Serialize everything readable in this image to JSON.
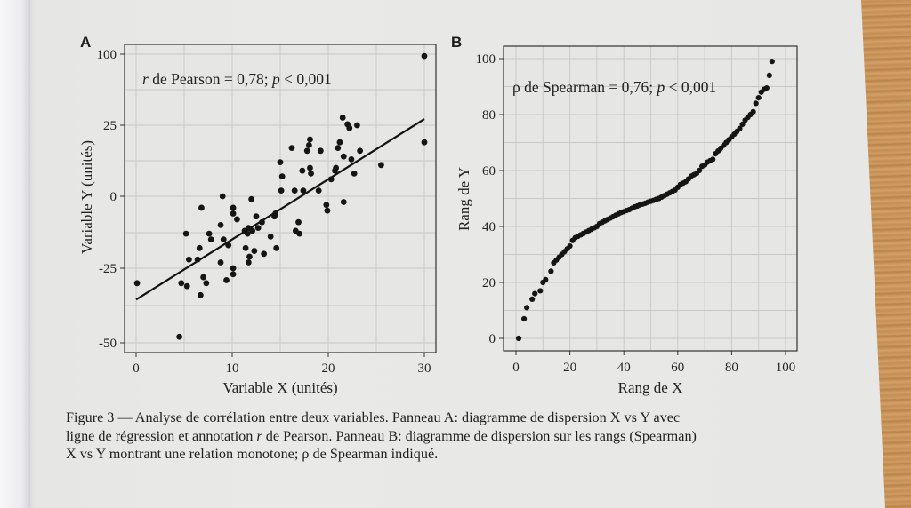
{
  "figure": {
    "caption_parts": {
      "line1": "Figure 3 — Analyse de corrélation entre deux variables. Panneau A: diagramme de dispersion X vs Y avec",
      "line2_pre": "ligne de régression et annotation ",
      "line2_r": "r",
      "line2_post": " de Pearson. Panneau B: diagramme de dispersion sur les rangs (Spearman)",
      "line3": "X vs Y montrant une relation monotone; ρ de Spearman indiqué."
    },
    "panel_a_label": "A",
    "panel_b_label": "B"
  },
  "chart_data": [
    {
      "type": "scatter",
      "panel": "A",
      "title": "",
      "annotation": {
        "r_symbol": "r",
        "text1": " de Pearson = 0,78; ",
        "p_symbol": "p",
        "text2": " < 0,001"
      },
      "xlabel": "Variable X (unités)",
      "ylabel": "Variable Y (unités)",
      "x_ticks": [
        0,
        10,
        20,
        30
      ],
      "y_ticks": [
        100,
        25,
        0,
        -25,
        -50
      ],
      "y_axis_note": "non-linear spacing between tick labels",
      "xlim": [
        -0.8,
        31
      ],
      "ylim": [
        -55,
        105
      ],
      "grid": true,
      "regression_line": {
        "x": [
          0,
          30
        ],
        "y": [
          -35.5,
          31.5
        ]
      },
      "points": [
        [
          0.1,
          -30
        ],
        [
          4.5,
          -48
        ],
        [
          4.7,
          -30
        ],
        [
          5.2,
          -13
        ],
        [
          5.3,
          -31
        ],
        [
          5.5,
          -22
        ],
        [
          6.4,
          -22
        ],
        [
          6.6,
          -18
        ],
        [
          6.8,
          -4
        ],
        [
          6.7,
          -34
        ],
        [
          7.0,
          -28
        ],
        [
          7.3,
          -30
        ],
        [
          7.6,
          -13
        ],
        [
          7.8,
          -15
        ],
        [
          8.8,
          -23
        ],
        [
          8.8,
          -10
        ],
        [
          9.1,
          -15
        ],
        [
          9.0,
          0
        ],
        [
          9.4,
          -29
        ],
        [
          9.6,
          -17
        ],
        [
          10.1,
          -25
        ],
        [
          10.1,
          -27
        ],
        [
          10.1,
          -4
        ],
        [
          10.1,
          -6
        ],
        [
          10.5,
          -8
        ],
        [
          11.3,
          -12
        ],
        [
          11.4,
          -18
        ],
        [
          11.6,
          -13
        ],
        [
          11.7,
          -11
        ],
        [
          11.8,
          -21
        ],
        [
          11.7,
          -23
        ],
        [
          12.0,
          -1
        ],
        [
          12.1,
          -12
        ],
        [
          12.3,
          -19
        ],
        [
          12.5,
          -7
        ],
        [
          12.7,
          -11
        ],
        [
          13.1,
          -9
        ],
        [
          13.3,
          -20
        ],
        [
          14.0,
          -14
        ],
        [
          14.5,
          -6
        ],
        [
          14.4,
          -7
        ],
        [
          14.6,
          -18
        ],
        [
          15.0,
          12
        ],
        [
          15.2,
          7
        ],
        [
          15.1,
          2
        ],
        [
          16.2,
          17
        ],
        [
          16.6,
          -12
        ],
        [
          16.5,
          2
        ],
        [
          16.9,
          -9
        ],
        [
          17.3,
          9
        ],
        [
          17.0,
          -13
        ],
        [
          17.4,
          2
        ],
        [
          17.8,
          16
        ],
        [
          18.0,
          18
        ],
        [
          18.1,
          10
        ],
        [
          18.2,
          8
        ],
        [
          18.1,
          20
        ],
        [
          19.0,
          2
        ],
        [
          19.2,
          16
        ],
        [
          19.8,
          -3
        ],
        [
          19.9,
          -5
        ],
        [
          20.3,
          6
        ],
        [
          20.7,
          9
        ],
        [
          20.8,
          10
        ],
        [
          21.0,
          17
        ],
        [
          21.5,
          33
        ],
        [
          21.2,
          19
        ],
        [
          21.6,
          -2
        ],
        [
          21.6,
          14
        ],
        [
          22.0,
          26
        ],
        [
          22.4,
          13
        ],
        [
          22.7,
          8
        ],
        [
          23.3,
          16
        ],
        [
          23.0,
          25
        ],
        [
          22.2,
          24
        ],
        [
          25.5,
          11
        ],
        [
          30.0,
          98
        ],
        [
          30.0,
          19
        ]
      ]
    },
    {
      "type": "scatter",
      "panel": "B",
      "title": "",
      "annotation": {
        "rho_symbol": "ρ",
        "text1": " de Spearman = 0,76; ",
        "p_symbol": "p",
        "text2": " < 0,001"
      },
      "xlabel": "Rang de X",
      "ylabel": "Rang de Y",
      "x_ticks": [
        0,
        20,
        40,
        60,
        80,
        100
      ],
      "y_ticks": [
        0,
        20,
        40,
        60,
        80,
        100
      ],
      "xlim": [
        -4.5,
        104
      ],
      "ylim": [
        -4.5,
        104
      ],
      "grid": true,
      "points": [
        [
          1,
          0
        ],
        [
          3,
          7
        ],
        [
          4,
          11
        ],
        [
          6,
          14
        ],
        [
          7,
          16
        ],
        [
          9,
          17
        ],
        [
          10,
          20
        ],
        [
          11,
          21
        ],
        [
          13,
          24
        ],
        [
          14,
          27
        ],
        [
          15,
          28
        ],
        [
          16,
          29
        ],
        [
          17,
          30
        ],
        [
          18,
          31
        ],
        [
          19,
          32
        ],
        [
          20,
          33
        ],
        [
          21,
          35
        ],
        [
          22,
          36
        ],
        [
          23,
          36.5
        ],
        [
          24,
          37
        ],
        [
          25,
          37.5
        ],
        [
          26,
          38
        ],
        [
          27,
          38.5
        ],
        [
          28,
          39
        ],
        [
          29,
          39.5
        ],
        [
          30,
          40
        ],
        [
          31,
          41
        ],
        [
          32,
          41.5
        ],
        [
          33,
          42
        ],
        [
          34,
          42.5
        ],
        [
          35,
          43
        ],
        [
          36,
          43.5
        ],
        [
          37,
          44
        ],
        [
          38,
          44.5
        ],
        [
          39,
          45
        ],
        [
          40,
          45.3
        ],
        [
          41,
          45.7
        ],
        [
          42,
          46
        ],
        [
          43,
          46.5
        ],
        [
          44,
          47
        ],
        [
          45,
          47.3
        ],
        [
          46,
          47.7
        ],
        [
          47,
          48
        ],
        [
          48,
          48.3
        ],
        [
          49,
          48.7
        ],
        [
          50,
          49
        ],
        [
          51,
          49.3
        ],
        [
          52,
          49.7
        ],
        [
          53,
          50
        ],
        [
          54,
          50.5
        ],
        [
          55,
          51
        ],
        [
          56,
          51.5
        ],
        [
          57,
          52
        ],
        [
          58,
          52.5
        ],
        [
          59,
          53
        ],
        [
          60,
          54
        ],
        [
          61,
          55
        ],
        [
          62,
          55.5
        ],
        [
          63,
          56
        ],
        [
          64,
          57
        ],
        [
          65,
          58
        ],
        [
          66,
          58.5
        ],
        [
          67,
          59
        ],
        [
          68,
          60
        ],
        [
          69,
          61.5
        ],
        [
          70,
          62
        ],
        [
          71,
          63
        ],
        [
          72,
          63.5
        ],
        [
          73,
          64
        ],
        [
          74,
          66
        ],
        [
          75,
          67
        ],
        [
          76,
          68
        ],
        [
          77,
          69
        ],
        [
          78,
          70
        ],
        [
          79,
          71
        ],
        [
          80,
          72
        ],
        [
          81,
          73
        ],
        [
          82,
          74
        ],
        [
          83,
          75
        ],
        [
          84,
          76.5
        ],
        [
          85,
          78
        ],
        [
          86,
          79
        ],
        [
          87,
          80
        ],
        [
          88,
          81
        ],
        [
          89,
          84
        ],
        [
          90,
          86
        ],
        [
          91,
          88
        ],
        [
          92,
          89
        ],
        [
          93,
          89.5
        ],
        [
          94,
          94
        ],
        [
          95,
          99
        ]
      ]
    }
  ]
}
